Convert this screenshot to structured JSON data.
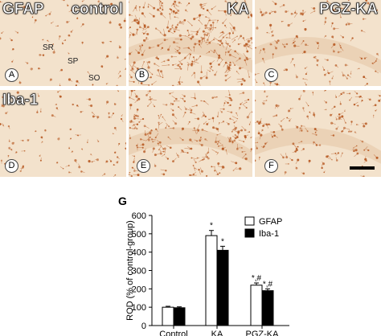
{
  "panels": [
    {
      "letter": "A",
      "tl_label": "GFAP",
      "tr_label": "control",
      "layers": [
        "SR",
        "SP",
        "SO"
      ]
    },
    {
      "letter": "B",
      "tl_label": "",
      "tr_label": "KA",
      "layers": []
    },
    {
      "letter": "C",
      "tl_label": "",
      "tr_label": "PGZ-KA",
      "layers": []
    },
    {
      "letter": "D",
      "tl_label": "Iba-1",
      "tr_label": "",
      "layers": []
    },
    {
      "letter": "E",
      "tl_label": "",
      "tr_label": "",
      "layers": []
    },
    {
      "letter": "F",
      "tl_label": "",
      "tr_label": "",
      "layers": []
    }
  ],
  "colors": {
    "tissue_bg": "#f3e2cc",
    "tissue_dense": "#e9ceb0",
    "stain": "#b5541c",
    "bar_gfap": "#ffffff",
    "bar_iba1": "#000000"
  },
  "chart_data": {
    "type": "bar",
    "panel_label": "G",
    "categories": [
      "Control",
      "KA",
      "PGZ-KA"
    ],
    "series": [
      {
        "name": "GFAP",
        "values": [
          100,
          490,
          220
        ],
        "errors": [
          5,
          28,
          12
        ],
        "annotations": [
          "",
          "*",
          "*,#"
        ]
      },
      {
        "name": "Iba-1",
        "values": [
          97,
          410,
          190
        ],
        "errors": [
          5,
          22,
          10
        ],
        "annotations": [
          "",
          "*",
          "*,#"
        ]
      }
    ],
    "ylabel": "ROD (% of control-group)",
    "xlabel": "",
    "ylim": [
      0,
      600
    ],
    "yticks": [
      0,
      100,
      200,
      300,
      400,
      500,
      600
    ],
    "legend_position": "top-right",
    "grid": false
  }
}
